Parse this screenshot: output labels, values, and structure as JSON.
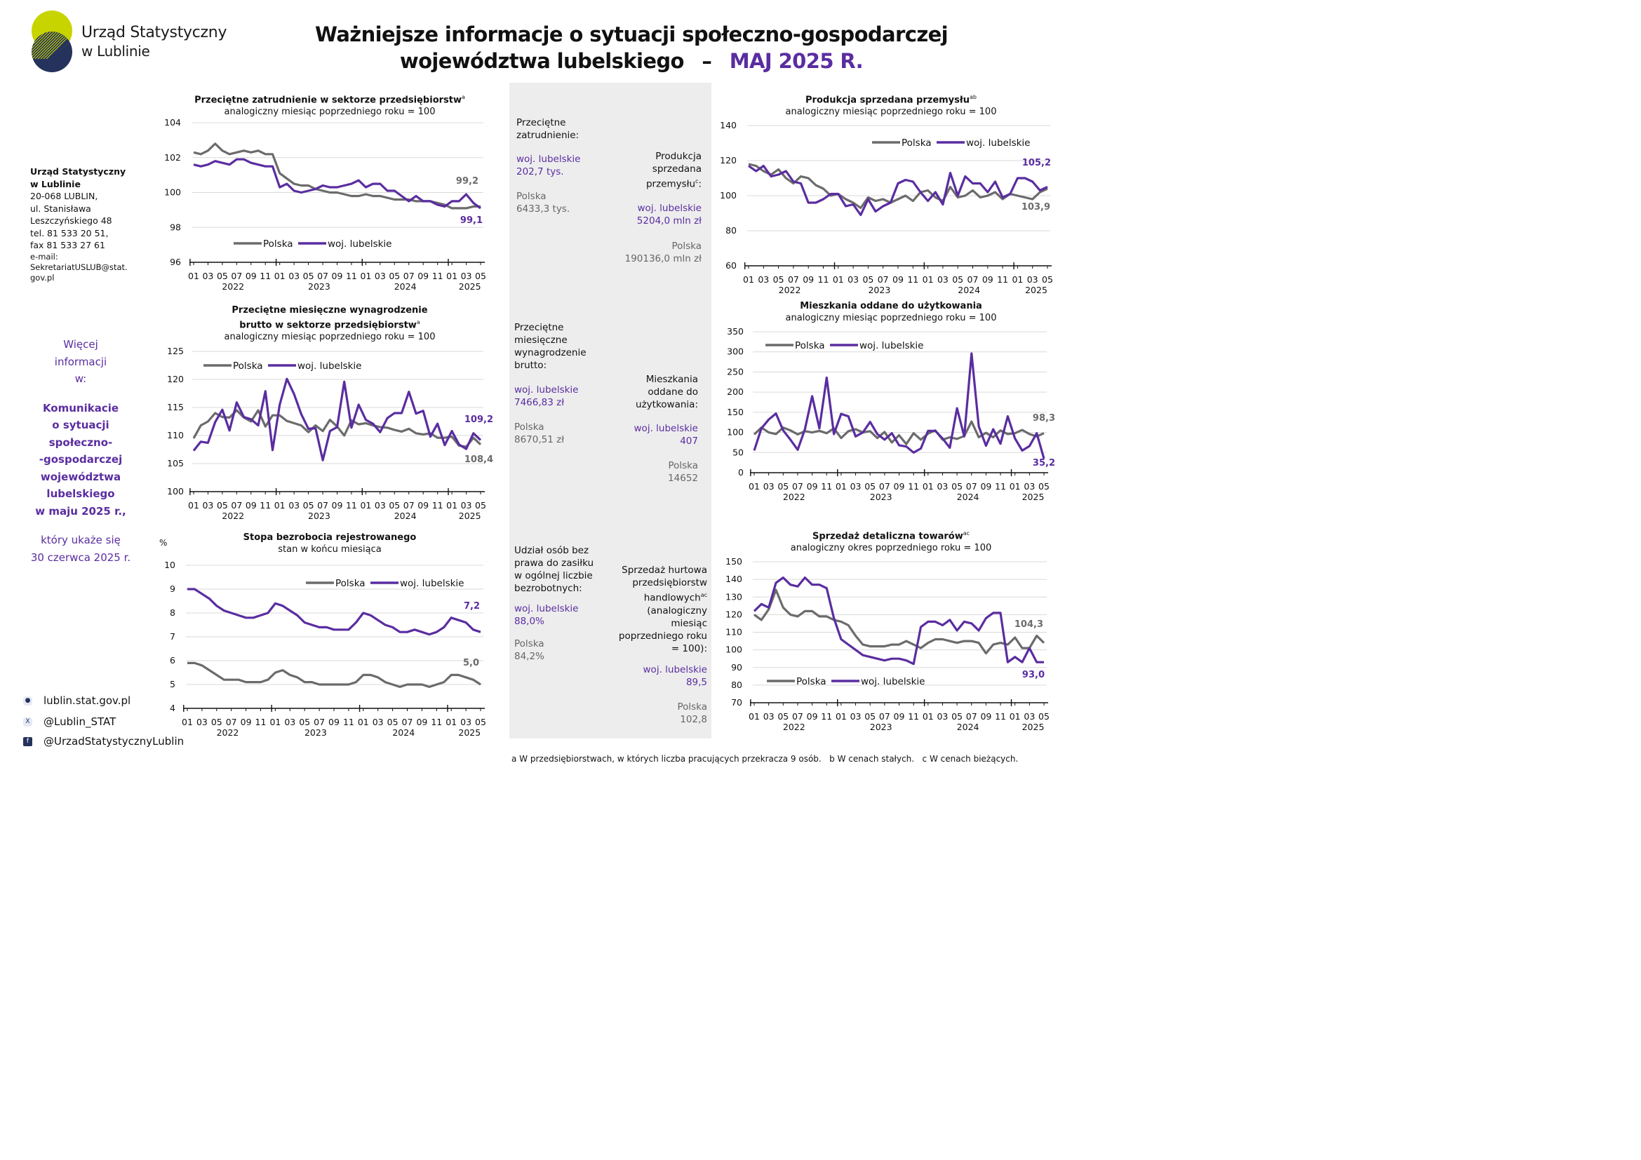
{
  "header": {
    "org_line1": "Urząd Statystyczny",
    "org_line2": "w Lublinie",
    "title_line1": "Ważniejsze informacje o sytuacji społeczno-gospodarczej",
    "title_line2_main": "województwa lubelskiego",
    "title_dash": "–",
    "title_line2_accent": "MAJ 2025 R."
  },
  "colors": {
    "polska": "#6b6b6b",
    "lubelskie": "#5a2da0",
    "logo_yellow": "#c8d400",
    "logo_navy": "#24325c"
  },
  "contact": {
    "name1": "Urząd Statystyczny",
    "name2": "w Lublinie",
    "lines": [
      "20-068 LUBLIN,",
      "ul. Stanisława",
      "Leszczyńskiego 48",
      "tel. 81 533 20 51,",
      "fax 81 533 27 61"
    ],
    "email_label": "e-mail:",
    "email1": "SekretariatUSLUB@stat.",
    "email2": "gov.pl"
  },
  "more": {
    "l1": "Więcej",
    "l2": "informacji",
    "l3": "w:",
    "b1": "Komunikacie",
    "b2": "o sytuacji",
    "b3": "społeczno-",
    "b4": "-gospodarczej",
    "b5": "województwa",
    "b6": "lubelskiego",
    "b7": "w maju 2025 r.,",
    "n1": "który ukaże się",
    "n2": "30 czerwca 2025 r."
  },
  "social": {
    "web_icon": "globe-icon",
    "web": "lublin.stat.gov.pl",
    "x_icon": "x-icon",
    "x": "@Lublin_STAT",
    "fb_icon": "facebook-icon",
    "fb": "@UrzadStatystycznyLublin"
  },
  "panel": {
    "emp_l1": "Przeciętne",
    "emp_l2": "zatrudnienie:",
    "emp_woj_label": "woj. lubelskie",
    "emp_woj_value": "202,7 tys.",
    "emp_pl_label": "Polska",
    "emp_pl_value": "6433,3 tys.",
    "prod_l1": "Produkcja",
    "prod_l2": "sprzedana",
    "prod_l3": "przemysłu",
    "prod_sup": "c",
    "prod_colon": ":",
    "prod_woj_label": "woj. lubelskie",
    "prod_woj_value": "5204,0 mln zł",
    "prod_pl_label": "Polska",
    "prod_pl_value": "190136,0 mln zł",
    "wage_l1": "Przeciętne",
    "wage_l2": "miesięczne",
    "wage_l3": "wynagrodzenie",
    "wage_l4": "brutto:",
    "wage_woj_label": "woj. lubelskie",
    "wage_woj_value": "7466,83 zł",
    "wage_pl_label": "Polska",
    "wage_pl_value": "8670,51 zł",
    "dw_l1": "Mieszkania",
    "dw_l2": "oddane do",
    "dw_l3": "użytkowania:",
    "dw_woj_label": "woj. lubelskie",
    "dw_woj_value": "407",
    "dw_pl_label": "Polska",
    "dw_pl_value": "14652",
    "un_l1": "Udział osób bez",
    "un_l2": "prawa do zasiłku",
    "un_l3": "w ogólnej liczbie",
    "un_l4": "bezrobotnych:",
    "un_woj_label": "woj. lubelskie",
    "un_woj_value": "88,0%",
    "un_pl_label": "Polska",
    "un_pl_value": "84,2%",
    "wh_l1": "Sprzedaż hurtowa",
    "wh_l2": "przedsiębiorstw",
    "wh_l3": "handlowych",
    "wh_sup": "ac",
    "wh_l4": "(analogiczny",
    "wh_l5": "miesiąc",
    "wh_l6": "poprzedniego roku",
    "wh_l7": "= 100):",
    "wh_woj_label": "woj. lubelskie",
    "wh_woj_value": "89,5",
    "wh_pl_label": "Polska",
    "wh_pl_value": "102,8"
  },
  "footnote": "a W przedsiębiorstwach, w których liczba pracujących przekracza 9 osób.   b W cenach stałych.   c W cenach bieżących.",
  "chart_data": [
    {
      "id": "employment",
      "type": "line",
      "title": "Przeciętne zatrudnienie w sektorze przedsiębiorstw",
      "title_sup": "a",
      "subtitle": "analogiczny miesiąc poprzedniego roku = 100",
      "ylim": [
        96,
        104
      ],
      "yticks": [
        96,
        98,
        100,
        102,
        104
      ],
      "ytick_labels": [
        "96",
        "98",
        "100",
        "102",
        "104"
      ],
      "grid": true,
      "legend_position": "bottom-center",
      "x_tick_labels": [
        "01",
        "03",
        "05",
        "07",
        "09",
        "11",
        "01",
        "03",
        "05",
        "07",
        "09",
        "11",
        "01",
        "03",
        "05",
        "07",
        "09",
        "11",
        "01",
        "03",
        "05"
      ],
      "years": [
        "2022",
        "2023",
        "2024",
        "2025"
      ],
      "series": [
        {
          "name": "Polska",
          "values": [
            102.3,
            102.2,
            102.4,
            102.8,
            102.4,
            102.2,
            102.3,
            102.4,
            102.3,
            102.4,
            102.2,
            102.2,
            101.1,
            100.8,
            100.5,
            100.4,
            100.4,
            100.2,
            100.1,
            100.0,
            100.0,
            99.9,
            99.8,
            99.8,
            99.9,
            99.8,
            99.8,
            99.7,
            99.6,
            99.6,
            99.6,
            99.5,
            99.5,
            99.5,
            99.4,
            99.3,
            99.1,
            99.1,
            99.1,
            99.2,
            99.2
          ]
        },
        {
          "name": "woj. lubelskie",
          "values": [
            101.6,
            101.5,
            101.6,
            101.8,
            101.7,
            101.6,
            101.9,
            101.9,
            101.7,
            101.6,
            101.5,
            101.5,
            100.3,
            100.5,
            100.1,
            100.0,
            100.1,
            100.2,
            100.4,
            100.3,
            100.3,
            100.4,
            100.5,
            100.7,
            100.3,
            100.5,
            100.5,
            100.1,
            100.1,
            99.8,
            99.5,
            99.8,
            99.5,
            99.5,
            99.3,
            99.2,
            99.5,
            99.5,
            99.9,
            99.4,
            99.1
          ]
        }
      ],
      "end_labels": {
        "polska": "99,2",
        "lubelskie": "99,1"
      }
    },
    {
      "id": "industry",
      "type": "line",
      "title": "Produkcja sprzedana przemysłu",
      "title_sup": "ab",
      "subtitle": "analogiczny miesiąc poprzedniego roku = 100",
      "ylim": [
        60,
        140
      ],
      "yticks": [
        60,
        80,
        100,
        120,
        140
      ],
      "ytick_labels": [
        "60",
        "80",
        "100",
        "120",
        "140"
      ],
      "grid": true,
      "legend_position": "top-right",
      "x_tick_labels": [
        "01",
        "03",
        "05",
        "07",
        "09",
        "11",
        "01",
        "03",
        "05",
        "07",
        "09",
        "11",
        "01",
        "03",
        "05",
        "07",
        "09",
        "11",
        "01",
        "03",
        "05"
      ],
      "years": [
        "2022",
        "2023",
        "2024",
        "2025"
      ],
      "series": [
        {
          "name": "Polska",
          "values": [
            118,
            117,
            114,
            112,
            115,
            110,
            107,
            111,
            110,
            106,
            104,
            100,
            101,
            98,
            96,
            93,
            99,
            97,
            98,
            96,
            98,
            100,
            97,
            102,
            103,
            99,
            97,
            105,
            99,
            100,
            103,
            99,
            100,
            102,
            98,
            101,
            100,
            99,
            98,
            102,
            104
          ]
        },
        {
          "name": "woj. lubelskie",
          "values": [
            117,
            114,
            117,
            111,
            112,
            114,
            108,
            107,
            96,
            96,
            98,
            101,
            101,
            94,
            95,
            89,
            98,
            91,
            94,
            96,
            107,
            109,
            108,
            102,
            97,
            102,
            95,
            113,
            100,
            111,
            107,
            107,
            102,
            108,
            99,
            101,
            110,
            110,
            108,
            103,
            105
          ]
        }
      ],
      "end_labels": {
        "polska": "103,9",
        "lubelskie": "105,2"
      }
    },
    {
      "id": "wages",
      "type": "line",
      "title": "Przeciętne miesięczne wynagrodzenie brutto w sektorze przedsiębiorstw",
      "title_sup": "a",
      "subtitle": "analogiczny miesiąc poprzedniego roku = 100",
      "ylim": [
        100,
        125
      ],
      "yticks": [
        100,
        105,
        110,
        115,
        120,
        125
      ],
      "ytick_labels": [
        "100",
        "105",
        "110",
        "115",
        "120",
        "125"
      ],
      "grid": true,
      "legend_position": "top-left",
      "x_tick_labels": [
        "01",
        "03",
        "05",
        "07",
        "09",
        "11",
        "01",
        "03",
        "05",
        "07",
        "09",
        "11",
        "01",
        "03",
        "05",
        "07",
        "09",
        "11",
        "01",
        "03",
        "05"
      ],
      "years": [
        "2022",
        "2023",
        "2024",
        "2025"
      ],
      "series": [
        {
          "name": "Polska",
          "values": [
            109.5,
            111.8,
            112.5,
            114.0,
            113.3,
            113.2,
            114.5,
            113.2,
            112.5,
            114.5,
            111.6,
            113.6,
            113.6,
            112.6,
            112.2,
            111.8,
            110.6,
            111.8,
            110.8,
            112.8,
            111.6,
            110.0,
            112.7,
            112.0,
            112.2,
            111.8,
            111.5,
            111.4,
            111.0,
            110.7,
            111.2,
            110.4,
            110.2,
            110.4,
            109.6,
            109.6,
            109.8,
            108.2,
            108.0,
            109.6,
            108.4
          ]
        },
        {
          "name": "woj. lubelskie",
          "values": [
            107.3,
            108.9,
            108.7,
            112.4,
            114.6,
            110.9,
            115.9,
            113.3,
            112.9,
            111.8,
            117.9,
            107.4,
            115.5,
            120.1,
            117.4,
            113.8,
            111.2,
            111.3,
            105.6,
            110.8,
            111.5,
            119.6,
            111.4,
            115.5,
            112.8,
            112.1,
            110.6,
            113.1,
            114.0,
            114.0,
            117.8,
            113.9,
            114.4,
            109.8,
            112.1,
            108.3,
            110.8,
            108.4,
            107.6,
            110.4,
            109.2
          ]
        }
      ],
      "end_labels": {
        "polska": "108,4",
        "lubelskie": "109,2"
      }
    },
    {
      "id": "dwellings",
      "type": "line",
      "title": "Mieszkania oddane do użytkowania",
      "subtitle": "analogiczny miesiąc poprzedniego roku = 100",
      "ylim": [
        0,
        350
      ],
      "yticks": [
        0,
        50,
        100,
        150,
        200,
        250,
        300,
        350
      ],
      "ytick_labels": [
        "0",
        "50",
        "100",
        "150",
        "200",
        "250",
        "300",
        "350"
      ],
      "grid": true,
      "legend_position": "top-left",
      "x_tick_labels": [
        "01",
        "03",
        "05",
        "07",
        "09",
        "11",
        "01",
        "03",
        "05",
        "07",
        "09",
        "11",
        "01",
        "03",
        "05",
        "07",
        "09",
        "11",
        "01",
        "03",
        "05"
      ],
      "years": [
        "2022",
        "2023",
        "2024",
        "2025"
      ],
      "series": [
        {
          "name": "Polska",
          "values": [
            95,
            112,
            100,
            96,
            112,
            105,
            95,
            103,
            100,
            104,
            98,
            110,
            86,
            103,
            108,
            100,
            103,
            86,
            101,
            75,
            93,
            71,
            98,
            82,
            97,
            105,
            82,
            88,
            84,
            91,
            127,
            88,
            99,
            88,
            105,
            96,
            98,
            106,
            96,
            90,
            98
          ]
        },
        {
          "name": "woj. lubelskie",
          "values": [
            55,
            110,
            132,
            147,
            105,
            82,
            57,
            108,
            190,
            110,
            236,
            96,
            146,
            140,
            90,
            100,
            126,
            96,
            82,
            98,
            68,
            65,
            50,
            60,
            104,
            104,
            85,
            62,
            160,
            90,
            296,
            115,
            67,
            108,
            72,
            140,
            85,
            55,
            66,
            98,
            35
          ]
        }
      ],
      "end_labels": {
        "polska": "98,3",
        "lubelskie": "35,2"
      }
    },
    {
      "id": "unemployment",
      "type": "line",
      "title": "Stopa bezrobocia rejestrowanego",
      "subtitle": "stan w końcu miesiąca",
      "ylabel": "%",
      "ylim": [
        4,
        10
      ],
      "yticks": [
        4,
        5,
        6,
        7,
        8,
        9,
        10
      ],
      "ytick_labels": [
        "4",
        "5",
        "6",
        "7",
        "8",
        "9",
        "10"
      ],
      "grid": true,
      "legend_position": "top-right",
      "x_tick_labels": [
        "01",
        "03",
        "05",
        "07",
        "09",
        "11",
        "01",
        "03",
        "05",
        "07",
        "09",
        "11",
        "01",
        "03",
        "05",
        "07",
        "09",
        "11",
        "01",
        "03",
        "05"
      ],
      "years": [
        "2022",
        "2023",
        "2024",
        "2025"
      ],
      "series": [
        {
          "name": "Polska",
          "values": [
            5.9,
            5.9,
            5.8,
            5.6,
            5.4,
            5.2,
            5.2,
            5.2,
            5.1,
            5.1,
            5.1,
            5.2,
            5.5,
            5.6,
            5.4,
            5.3,
            5.1,
            5.1,
            5.0,
            5.0,
            5.0,
            5.0,
            5.0,
            5.1,
            5.4,
            5.4,
            5.3,
            5.1,
            5.0,
            4.9,
            5.0,
            5.0,
            5.0,
            4.9,
            5.0,
            5.1,
            5.4,
            5.4,
            5.3,
            5.2,
            5.0
          ]
        },
        {
          "name": "woj. lubelskie",
          "values": [
            9.0,
            9.0,
            8.8,
            8.6,
            8.3,
            8.1,
            8.0,
            7.9,
            7.8,
            7.8,
            7.9,
            8.0,
            8.4,
            8.3,
            8.1,
            7.9,
            7.6,
            7.5,
            7.4,
            7.4,
            7.3,
            7.3,
            7.3,
            7.6,
            8.0,
            7.9,
            7.7,
            7.5,
            7.4,
            7.2,
            7.2,
            7.3,
            7.2,
            7.1,
            7.2,
            7.4,
            7.8,
            7.7,
            7.6,
            7.3,
            7.2
          ]
        }
      ],
      "end_labels": {
        "polska": "5,0",
        "lubelskie": "7,2"
      }
    },
    {
      "id": "retail",
      "type": "line",
      "title": "Sprzedaż detaliczna towarów",
      "title_sup": "ac",
      "subtitle": "analogiczny okres poprzedniego roku = 100",
      "ylim": [
        70,
        150
      ],
      "yticks": [
        70,
        80,
        90,
        100,
        110,
        120,
        130,
        140,
        150
      ],
      "ytick_labels": [
        "70",
        "80",
        "90",
        "100",
        "110",
        "120",
        "130",
        "140",
        "150"
      ],
      "grid": true,
      "legend_position": "bottom-left",
      "x_tick_labels": [
        "01",
        "03",
        "05",
        "07",
        "09",
        "11",
        "01",
        "03",
        "05",
        "07",
        "09",
        "11",
        "01",
        "03",
        "05",
        "07",
        "09",
        "11",
        "01",
        "03",
        "05"
      ],
      "years": [
        "2022",
        "2023",
        "2024",
        "2025"
      ],
      "series": [
        {
          "name": "Polska",
          "values": [
            120,
            117,
            123,
            134,
            124,
            120,
            119,
            122,
            122,
            119,
            119,
            117,
            116,
            114,
            108,
            103,
            102,
            102,
            102,
            103,
            103,
            105,
            103,
            101,
            104,
            106,
            106,
            105,
            104,
            105,
            105,
            104,
            98,
            103,
            104,
            103,
            107,
            101,
            101,
            108,
            104
          ]
        },
        {
          "name": "woj. lubelskie",
          "values": [
            122,
            126,
            124,
            138,
            141,
            137,
            136,
            141,
            137,
            137,
            135,
            118,
            106,
            103,
            100,
            97,
            96,
            95,
            94,
            95,
            95,
            94,
            92,
            113,
            116,
            116,
            114,
            117,
            111,
            116,
            115,
            111,
            118,
            121,
            121,
            93,
            96,
            93,
            101,
            93,
            93
          ]
        }
      ],
      "end_labels": {
        "polska": "104,3",
        "lubelskie": "93,0"
      }
    }
  ]
}
